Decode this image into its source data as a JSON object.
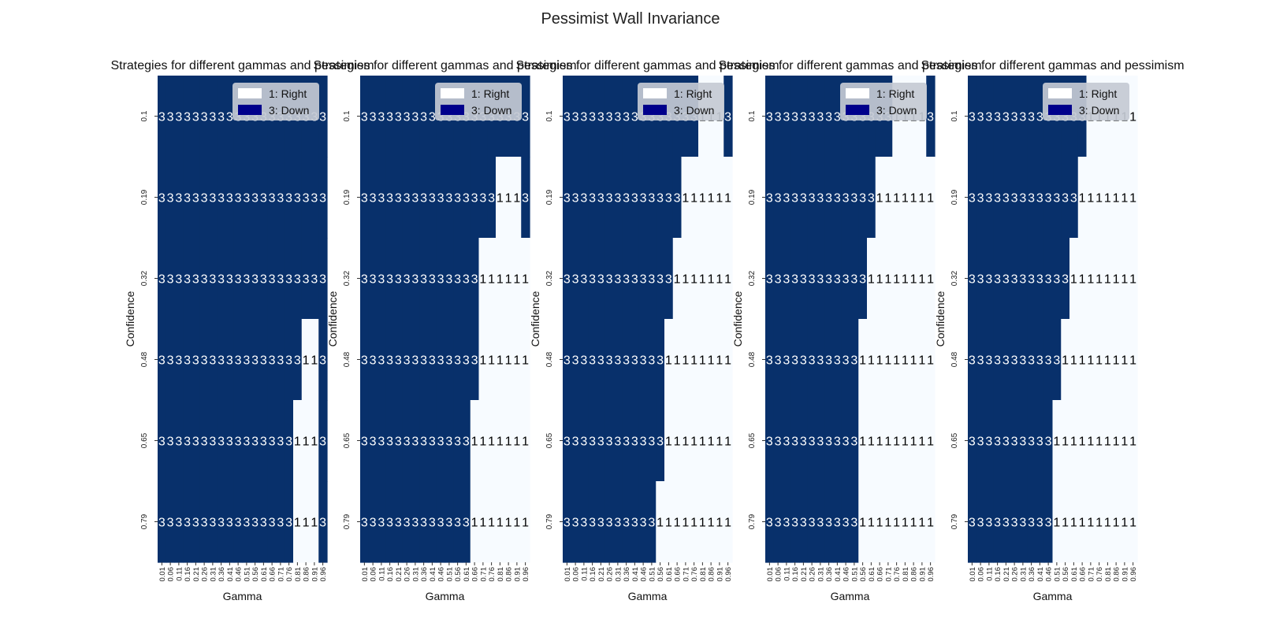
{
  "figure": {
    "suptitle": "Pessimist Wall Invariance"
  },
  "colors": {
    "down": "#08306b",
    "right": "#f7fbff",
    "text_on_dark": "#ffffff",
    "text_on_light": "#000000",
    "legend_down_swatch": "#00008b",
    "legend_right_swatch": "#ffffff",
    "legend_box": "#c4cad4"
  },
  "legend": {
    "position": "upper-right",
    "entries": [
      {
        "label": "1: Right",
        "code": 1,
        "swatch": "legend_right_swatch"
      },
      {
        "label": "3: Down",
        "code": 3,
        "swatch": "legend_down_swatch"
      }
    ]
  },
  "chart_data": [
    {
      "type": "heatmap",
      "title": "Strategies for different gammas and pessimism",
      "xlabel": "Gamma",
      "ylabel": "Confidence",
      "x": [
        "0.01",
        "0.06",
        "0.11",
        "0.16",
        "0.21",
        "0.26",
        "0.31",
        "0.36",
        "0.41",
        "0.46",
        "0.51",
        "0.56",
        "0.61",
        "0.66",
        "0.71",
        "0.76",
        "0.81",
        "0.86",
        "0.91",
        "0.96"
      ],
      "y": [
        "0.1",
        "0.19",
        "0.32",
        "0.48",
        "0.65",
        "0.79"
      ],
      "values": [
        [
          3,
          3,
          3,
          3,
          3,
          3,
          3,
          3,
          3,
          3,
          3,
          3,
          3,
          3,
          3,
          3,
          3,
          3,
          3,
          3
        ],
        [
          3,
          3,
          3,
          3,
          3,
          3,
          3,
          3,
          3,
          3,
          3,
          3,
          3,
          3,
          3,
          3,
          3,
          3,
          3,
          3
        ],
        [
          3,
          3,
          3,
          3,
          3,
          3,
          3,
          3,
          3,
          3,
          3,
          3,
          3,
          3,
          3,
          3,
          3,
          3,
          3,
          3
        ],
        [
          3,
          3,
          3,
          3,
          3,
          3,
          3,
          3,
          3,
          3,
          3,
          3,
          3,
          3,
          3,
          3,
          3,
          1,
          1,
          3
        ],
        [
          3,
          3,
          3,
          3,
          3,
          3,
          3,
          3,
          3,
          3,
          3,
          3,
          3,
          3,
          3,
          3,
          1,
          1,
          1,
          3
        ],
        [
          3,
          3,
          3,
          3,
          3,
          3,
          3,
          3,
          3,
          3,
          3,
          3,
          3,
          3,
          3,
          3,
          1,
          1,
          1,
          3
        ]
      ]
    },
    {
      "type": "heatmap",
      "title": "Strategies for different gammas and pessimism",
      "xlabel": "Gamma",
      "ylabel": "Confidence",
      "x": [
        "0.01",
        "0.06",
        "0.11",
        "0.16",
        "0.21",
        "0.26",
        "0.31",
        "0.36",
        "0.41",
        "0.46",
        "0.51",
        "0.56",
        "0.61",
        "0.66",
        "0.71",
        "0.76",
        "0.81",
        "0.86",
        "0.91",
        "0.96"
      ],
      "y": [
        "0.1",
        "0.19",
        "0.32",
        "0.48",
        "0.65",
        "0.79"
      ],
      "values": [
        [
          3,
          3,
          3,
          3,
          3,
          3,
          3,
          3,
          3,
          3,
          3,
          3,
          3,
          3,
          3,
          3,
          3,
          3,
          3,
          3
        ],
        [
          3,
          3,
          3,
          3,
          3,
          3,
          3,
          3,
          3,
          3,
          3,
          3,
          3,
          3,
          3,
          3,
          1,
          1,
          1,
          3
        ],
        [
          3,
          3,
          3,
          3,
          3,
          3,
          3,
          3,
          3,
          3,
          3,
          3,
          3,
          3,
          1,
          1,
          1,
          1,
          1,
          1
        ],
        [
          3,
          3,
          3,
          3,
          3,
          3,
          3,
          3,
          3,
          3,
          3,
          3,
          3,
          3,
          1,
          1,
          1,
          1,
          1,
          1
        ],
        [
          3,
          3,
          3,
          3,
          3,
          3,
          3,
          3,
          3,
          3,
          3,
          3,
          3,
          1,
          1,
          1,
          1,
          1,
          1,
          1
        ],
        [
          3,
          3,
          3,
          3,
          3,
          3,
          3,
          3,
          3,
          3,
          3,
          3,
          3,
          1,
          1,
          1,
          1,
          1,
          1,
          1
        ]
      ]
    },
    {
      "type": "heatmap",
      "title": "Strategies for different gammas and pessimism",
      "xlabel": "Gamma",
      "ylabel": "Confidence",
      "x": [
        "0.01",
        "0.06",
        "0.11",
        "0.16",
        "0.21",
        "0.26",
        "0.31",
        "0.36",
        "0.41",
        "0.46",
        "0.51",
        "0.56",
        "0.61",
        "0.66",
        "0.71",
        "0.76",
        "0.81",
        "0.86",
        "0.91",
        "0.96"
      ],
      "y": [
        "0.1",
        "0.19",
        "0.32",
        "0.48",
        "0.65",
        "0.79"
      ],
      "values": [
        [
          3,
          3,
          3,
          3,
          3,
          3,
          3,
          3,
          3,
          3,
          3,
          3,
          3,
          3,
          3,
          3,
          1,
          1,
          1,
          3
        ],
        [
          3,
          3,
          3,
          3,
          3,
          3,
          3,
          3,
          3,
          3,
          3,
          3,
          3,
          3,
          1,
          1,
          1,
          1,
          1,
          1
        ],
        [
          3,
          3,
          3,
          3,
          3,
          3,
          3,
          3,
          3,
          3,
          3,
          3,
          3,
          1,
          1,
          1,
          1,
          1,
          1,
          1
        ],
        [
          3,
          3,
          3,
          3,
          3,
          3,
          3,
          3,
          3,
          3,
          3,
          3,
          1,
          1,
          1,
          1,
          1,
          1,
          1,
          1
        ],
        [
          3,
          3,
          3,
          3,
          3,
          3,
          3,
          3,
          3,
          3,
          3,
          3,
          1,
          1,
          1,
          1,
          1,
          1,
          1,
          1
        ],
        [
          3,
          3,
          3,
          3,
          3,
          3,
          3,
          3,
          3,
          3,
          3,
          1,
          1,
          1,
          1,
          1,
          1,
          1,
          1,
          1
        ]
      ]
    },
    {
      "type": "heatmap",
      "title": "Strategies for different gammas and pessimism",
      "xlabel": "Gamma",
      "ylabel": "Confidence",
      "x": [
        "0.01",
        "0.06",
        "0.11",
        "0.16",
        "0.21",
        "0.26",
        "0.31",
        "0.36",
        "0.41",
        "0.46",
        "0.51",
        "0.56",
        "0.61",
        "0.66",
        "0.71",
        "0.76",
        "0.81",
        "0.86",
        "0.91",
        "0.96"
      ],
      "y": [
        "0.1",
        "0.19",
        "0.32",
        "0.48",
        "0.65",
        "0.79"
      ],
      "values": [
        [
          3,
          3,
          3,
          3,
          3,
          3,
          3,
          3,
          3,
          3,
          3,
          3,
          3,
          3,
          3,
          1,
          1,
          1,
          1,
          3
        ],
        [
          3,
          3,
          3,
          3,
          3,
          3,
          3,
          3,
          3,
          3,
          3,
          3,
          3,
          1,
          1,
          1,
          1,
          1,
          1,
          1
        ],
        [
          3,
          3,
          3,
          3,
          3,
          3,
          3,
          3,
          3,
          3,
          3,
          3,
          1,
          1,
          1,
          1,
          1,
          1,
          1,
          1
        ],
        [
          3,
          3,
          3,
          3,
          3,
          3,
          3,
          3,
          3,
          3,
          3,
          1,
          1,
          1,
          1,
          1,
          1,
          1,
          1,
          1
        ],
        [
          3,
          3,
          3,
          3,
          3,
          3,
          3,
          3,
          3,
          3,
          3,
          1,
          1,
          1,
          1,
          1,
          1,
          1,
          1,
          1
        ],
        [
          3,
          3,
          3,
          3,
          3,
          3,
          3,
          3,
          3,
          3,
          3,
          1,
          1,
          1,
          1,
          1,
          1,
          1,
          1,
          1
        ]
      ]
    },
    {
      "type": "heatmap",
      "title": "Strategies for different gammas and pessimism",
      "xlabel": "Gamma",
      "ylabel": "Confidence",
      "x": [
        "0.01",
        "0.06",
        "0.11",
        "0.16",
        "0.21",
        "0.26",
        "0.31",
        "0.36",
        "0.41",
        "0.46",
        "0.51",
        "0.56",
        "0.61",
        "0.66",
        "0.71",
        "0.76",
        "0.81",
        "0.86",
        "0.91",
        "0.96"
      ],
      "y": [
        "0.1",
        "0.19",
        "0.32",
        "0.48",
        "0.65",
        "0.79"
      ],
      "values": [
        [
          3,
          3,
          3,
          3,
          3,
          3,
          3,
          3,
          3,
          3,
          3,
          3,
          3,
          3,
          1,
          1,
          1,
          1,
          1,
          1
        ],
        [
          3,
          3,
          3,
          3,
          3,
          3,
          3,
          3,
          3,
          3,
          3,
          3,
          3,
          1,
          1,
          1,
          1,
          1,
          1,
          1
        ],
        [
          3,
          3,
          3,
          3,
          3,
          3,
          3,
          3,
          3,
          3,
          3,
          3,
          1,
          1,
          1,
          1,
          1,
          1,
          1,
          1
        ],
        [
          3,
          3,
          3,
          3,
          3,
          3,
          3,
          3,
          3,
          3,
          3,
          1,
          1,
          1,
          1,
          1,
          1,
          1,
          1,
          1
        ],
        [
          3,
          3,
          3,
          3,
          3,
          3,
          3,
          3,
          3,
          3,
          1,
          1,
          1,
          1,
          1,
          1,
          1,
          1,
          1,
          1
        ],
        [
          3,
          3,
          3,
          3,
          3,
          3,
          3,
          3,
          3,
          3,
          1,
          1,
          1,
          1,
          1,
          1,
          1,
          1,
          1,
          1
        ]
      ]
    }
  ]
}
